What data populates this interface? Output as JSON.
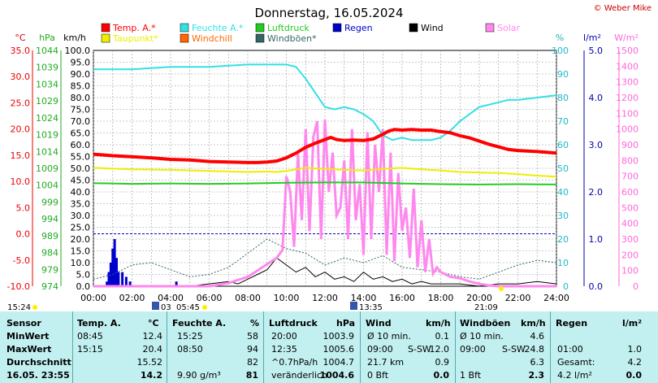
{
  "title": "Donnerstag, 16.05.2024",
  "credit": "© Weber Mike",
  "colors": {
    "temp": "#ff0000",
    "humidity": "#33e0e6",
    "pressure": "#22cc22",
    "rain": "#0000cc",
    "wind": "#000000",
    "solar": "#ff88ee",
    "dewpoint": "#eeee00",
    "windchill": "#ff6600",
    "gust": "#336666",
    "table_bg": "#c2f0f0"
  },
  "legend": [
    {
      "label": "Temp. A.*",
      "color": "#ff0000"
    },
    {
      "label": "Feuchte A.*",
      "color": "#33e0e6"
    },
    {
      "label": "Luftdruck",
      "color": "#22cc22"
    },
    {
      "label": "Regen",
      "color": "#0000cc"
    },
    {
      "label": "Wind",
      "color": "#000000"
    },
    {
      "label": "Solar",
      "color": "#ff88ee"
    },
    {
      "label": "Taupunkt*",
      "color": "#eeee00"
    },
    {
      "label": "Windchill",
      "color": "#ff6600"
    },
    {
      "label": "Windböen*",
      "color": "#336666"
    }
  ],
  "axis_units": {
    "temp": "°C",
    "pressure": "hPa",
    "wind": "km/h",
    "humidity": "%",
    "rain": "l/m²",
    "solar": "W/m²"
  },
  "chart_data": {
    "type": "line",
    "x_ticks": [
      "00:00",
      "02:00",
      "04:00",
      "06:00",
      "08:00",
      "10:00",
      "12:00",
      "14:00",
      "16:00",
      "18:00",
      "20:00",
      "22:00",
      "24:00"
    ],
    "temp_ticks": [
      "35.0",
      "30.0",
      "25.0",
      "20.0",
      "15.0",
      "10.0",
      "5.0",
      "0.0",
      "-5.0",
      "-10.0"
    ],
    "pressure_ticks": [
      "1044",
      "1039",
      "1034",
      "1029",
      "1024",
      "1019",
      "1014",
      "1009",
      "1004",
      "999",
      "994",
      "989",
      "984",
      "979",
      "974"
    ],
    "wind_ticks": [
      "100.0",
      "95.0",
      "90.0",
      "85.0",
      "80.0",
      "75.0",
      "70.0",
      "65.0",
      "60.0",
      "55.0",
      "50.0",
      "45.0",
      "40.0",
      "35.0",
      "30.0",
      "25.0",
      "20.0",
      "15.0",
      "10.0",
      "5.0",
      "0.0"
    ],
    "humidity_ticks": [
      "100",
      "90",
      "80",
      "70",
      "60",
      "50",
      "40",
      "30",
      "20",
      "10",
      "0"
    ],
    "rain_ticks": [
      "5.0",
      "4.0",
      "3.0",
      "2.0",
      "1.0",
      "0.0"
    ],
    "solar_ticks": [
      "1500",
      "1400",
      "1300",
      "1200",
      "1100",
      "1000",
      "900",
      "800",
      "700",
      "600",
      "500",
      "400",
      "300",
      "200",
      "100",
      "0"
    ],
    "ylim_wind": [
      0,
      100
    ],
    "series": [
      {
        "name": "Temp. A.*",
        "unit": "°C",
        "x": [
          0,
          1,
          2,
          3,
          4,
          5,
          6,
          7,
          8,
          8.5,
          9,
          9.5,
          10,
          10.5,
          11,
          11.5,
          12,
          12.3,
          12.6,
          13,
          13.5,
          14,
          14.5,
          15,
          15.3,
          15.6,
          16,
          16.5,
          17,
          17.5,
          18,
          18.5,
          19,
          19.5,
          20,
          20.5,
          21,
          21.5,
          22,
          22.5,
          23,
          24
        ],
        "y": [
          15.2,
          14.9,
          14.7,
          14.5,
          14.2,
          14.1,
          13.8,
          13.7,
          13.6,
          13.6,
          13.7,
          13.9,
          14.5,
          15.4,
          16.5,
          17.3,
          18.0,
          18.4,
          18.0,
          17.8,
          17.9,
          17.8,
          18.1,
          19.0,
          19.6,
          19.9,
          19.8,
          19.9,
          19.8,
          19.8,
          19.5,
          19.3,
          18.7,
          18.3,
          17.7,
          17.1,
          16.6,
          16.1,
          15.9,
          15.8,
          15.7,
          15.4
        ]
      },
      {
        "name": "Taupunkt*",
        "unit": "°C",
        "x": [
          0,
          2,
          4,
          6,
          8,
          9,
          9.5,
          10,
          11,
          12,
          13,
          14,
          15,
          16,
          17,
          18,
          19,
          20,
          21,
          22,
          23,
          24
        ],
        "y": [
          12.6,
          12.3,
          12.2,
          12.0,
          11.8,
          11.9,
          11.8,
          12.0,
          12.6,
          12.4,
          12.2,
          12.1,
          12.4,
          12.6,
          12.3,
          12.1,
          11.8,
          11.7,
          11.6,
          11.4,
          11.1,
          10.9
        ]
      },
      {
        "name": "Feuchte A.*",
        "unit": "%",
        "x": [
          0,
          1,
          2,
          3,
          4,
          5,
          6,
          7,
          8,
          9,
          9.5,
          10,
          10.5,
          11,
          11.5,
          12,
          12.5,
          13,
          13.5,
          14,
          14.5,
          15,
          15.5,
          16,
          16.5,
          17,
          17.5,
          18,
          18.5,
          19,
          19.5,
          20,
          20.5,
          21,
          21.5,
          22,
          23,
          24
        ],
        "y": [
          92,
          92,
          92,
          92.5,
          93,
          93,
          93,
          93.5,
          94,
          94,
          94,
          94,
          93,
          88,
          82,
          76,
          75,
          76,
          75,
          73,
          70,
          64,
          62,
          63,
          62,
          62,
          62,
          63,
          66,
          70,
          73,
          76,
          77,
          78,
          79,
          79,
          80,
          81
        ]
      },
      {
        "name": "Luftdruck",
        "unit": "hPa",
        "x": [
          0,
          2,
          4,
          6,
          8,
          10,
          12,
          14,
          16,
          18,
          20,
          22,
          24
        ],
        "y": [
          1004.6,
          1004.4,
          1004.5,
          1004.4,
          1004.5,
          1004.7,
          1004.8,
          1004.8,
          1004.5,
          1004.3,
          1004.2,
          1004.3,
          1004.2
        ]
      },
      {
        "name": "Solar",
        "unit": "W/m²",
        "x": [
          0,
          6,
          7,
          8,
          8.5,
          9,
          9.5,
          9.8,
          10,
          10.2,
          10.4,
          10.6,
          10.8,
          11,
          11.2,
          11.4,
          11.6,
          11.8,
          12,
          12.2,
          12.4,
          12.6,
          12.8,
          13,
          13.2,
          13.4,
          13.6,
          13.8,
          14,
          14.2,
          14.4,
          14.6,
          14.8,
          15,
          15.2,
          15.4,
          15.6,
          15.8,
          16,
          16.2,
          16.4,
          16.6,
          16.8,
          17,
          17.2,
          17.4,
          17.6,
          17.8,
          18,
          18.5,
          19,
          19.5,
          20,
          20.5,
          21,
          24
        ],
        "y": [
          0,
          0,
          20,
          60,
          100,
          140,
          180,
          230,
          700,
          600,
          250,
          850,
          420,
          1000,
          350,
          950,
          1050,
          300,
          1060,
          600,
          850,
          450,
          500,
          800,
          300,
          1000,
          420,
          650,
          200,
          980,
          300,
          900,
          600,
          1000,
          200,
          850,
          160,
          720,
          350,
          500,
          180,
          620,
          120,
          420,
          90,
          300,
          80,
          120,
          90,
          60,
          50,
          30,
          15,
          5,
          0,
          0
        ]
      },
      {
        "name": "Wind",
        "unit": "km/h",
        "x": [
          0,
          2,
          4,
          5,
          6,
          7,
          7.5,
          8,
          8.5,
          9,
          9.5,
          10,
          10.5,
          11,
          11.5,
          12,
          12.5,
          13,
          13.5,
          14,
          14.5,
          15,
          15.5,
          16,
          16.5,
          17,
          17.5,
          18,
          19,
          20,
          21,
          22,
          23,
          24
        ],
        "y": [
          0,
          0,
          0,
          0,
          1,
          2,
          1,
          3,
          5,
          7,
          12,
          9,
          6,
          8,
          4,
          6,
          3,
          4,
          2,
          6,
          3,
          4,
          2,
          3,
          1,
          2,
          1,
          1,
          1,
          0,
          1,
          1,
          2,
          1
        ],
        "label": "Wind"
      },
      {
        "name": "Windböen*",
        "unit": "km/h",
        "x": [
          0,
          1,
          2,
          3,
          4,
          5,
          6,
          7,
          8,
          9,
          10,
          11,
          12,
          13,
          14,
          15,
          16,
          17,
          18,
          19,
          20,
          21,
          22,
          23,
          24
        ],
        "y": [
          3,
          5,
          9,
          10,
          7,
          4,
          5,
          8,
          14,
          20,
          16,
          14,
          9,
          12,
          10,
          13,
          8,
          7,
          6,
          4,
          3,
          6,
          9,
          11,
          10
        ]
      },
      {
        "name": "Regen",
        "unit": "l/m²",
        "x": [
          0.7,
          0.8,
          0.9,
          1.0,
          1.1,
          1.2,
          1.3,
          1.5,
          1.7,
          1.9,
          4.3
        ],
        "y": [
          0.1,
          0.3,
          0.5,
          0.8,
          1.0,
          0.6,
          0.3,
          0.3,
          0.2,
          0.1,
          0.1
        ]
      }
    ]
  },
  "sun_markers": {
    "sunrise_label": "05:45",
    "sunset_label": "21:09",
    "moonrise_label": "03",
    "moonset_label": "13:35",
    "bottom_left_time": "15:24"
  },
  "table": {
    "headers": [
      "Sensor",
      "Temp. A.",
      "°C",
      "Feuchte A.",
      "%",
      "Luftdruck",
      "hPa",
      "Wind",
      "km/h",
      "Windböen",
      "km/h",
      "Regen",
      "l/m²"
    ],
    "rows": [
      {
        "label": "MinWert",
        "temp_time": "08:45",
        "temp_val": "12.4",
        "hum_time": "15:25",
        "hum_val": "58",
        "press_time": "20:00",
        "press_val": "1003.9",
        "wind_desc": "Ø 10 min.",
        "wind_val": "0.1",
        "gust_desc": "Ø 10 min.",
        "gust_val": "4.6",
        "rain_time": "",
        "rain_val": ""
      },
      {
        "label": "MaxWert",
        "temp_time": "15:15",
        "temp_val": "20.4",
        "hum_time": "08:50",
        "hum_val": "94",
        "press_time": "12:35",
        "press_val": "1005.6",
        "wind_desc": "09:00",
        "wind_dir": "S-SW",
        "wind_val": "12.0",
        "gust_desc": "09:00",
        "gust_dir": "S-SW",
        "gust_val": "24.8",
        "rain_time": "01:00",
        "rain_val": "1.0"
      },
      {
        "label": "Durchschnitt",
        "temp_time": "",
        "temp_val": "15.52",
        "hum_time": "",
        "hum_val": "82",
        "press_time": "^0.7hPa/h",
        "press_val": "1004.7",
        "wind_desc": "21.7 km",
        "wind_val": "0.9",
        "gust_desc": "",
        "gust_val": "6.3",
        "rain_time": "Gesamt:",
        "rain_val": "4.2"
      },
      {
        "label": "16.05. 23:55",
        "temp_time": "",
        "temp_val": "14.2",
        "hum_time": "9.90 g/m³",
        "hum_val": "81",
        "press_time": "veränderlich",
        "press_val": "1004.6",
        "wind_desc": "0 Bft",
        "wind_val": "0.0",
        "gust_desc": "1 Bft",
        "gust_val": "2.3",
        "rain_time": "4.2 l/m²",
        "rain_val": "0.0"
      }
    ]
  }
}
